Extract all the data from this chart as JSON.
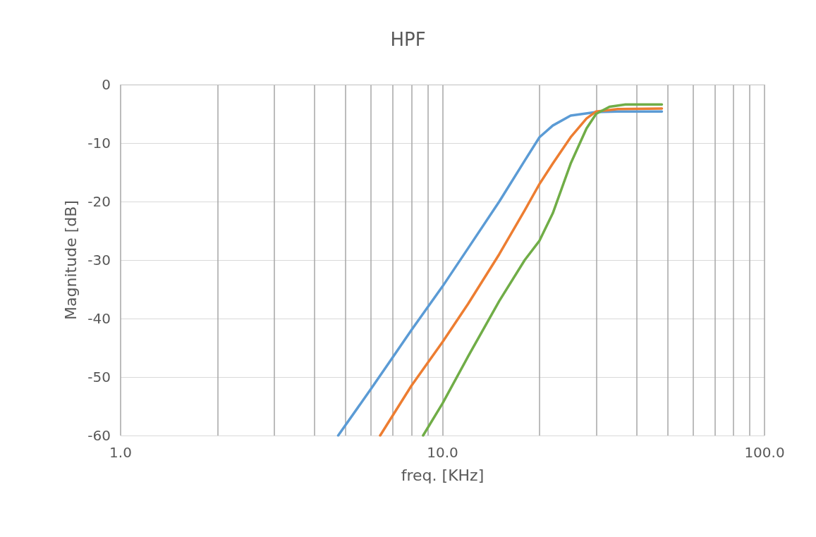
{
  "chart_data": {
    "type": "line",
    "title": "HPF",
    "xlabel": "freq. [KHz]",
    "ylabel": "Magnitude [dB]",
    "log": "x",
    "grid": true,
    "marker": "none",
    "line_style": "solid",
    "xlim": [
      1,
      100
    ],
    "xticks": [
      {
        "value": 1,
        "label": "1.0"
      },
      {
        "value": 2,
        "label": null
      },
      {
        "value": 3,
        "label": null
      },
      {
        "value": 4,
        "label": null
      },
      {
        "value": 5,
        "label": null
      },
      {
        "value": 6,
        "label": null
      },
      {
        "value": 7,
        "label": null
      },
      {
        "value": 8,
        "label": null
      },
      {
        "value": 9,
        "label": null
      },
      {
        "value": 10,
        "label": "10.0"
      },
      {
        "value": 20,
        "label": null
      },
      {
        "value": 30,
        "label": null
      },
      {
        "value": 40,
        "label": null
      },
      {
        "value": 50,
        "label": null
      },
      {
        "value": 60,
        "label": null
      },
      {
        "value": 70,
        "label": null
      },
      {
        "value": 80,
        "label": null
      },
      {
        "value": 90,
        "label": null
      },
      {
        "value": 100,
        "label": "100.0"
      }
    ],
    "ylim": [
      -60,
      0
    ],
    "yticks": [
      -60,
      -50,
      -40,
      -30,
      -20,
      -10,
      0
    ],
    "series": [
      {
        "color": "#5b9bd5",
        "x": [
          4.74,
          6,
          8,
          10,
          12,
          15,
          18,
          20,
          22,
          25,
          30,
          35,
          48
        ],
        "values": [
          -60,
          -52,
          -42,
          -34.5,
          -28,
          -20,
          -13,
          -9,
          -7,
          -5.3,
          -4.7,
          -4.6,
          -4.6
        ]
      },
      {
        "color": "#ed7d31",
        "x": [
          6.4,
          8,
          10,
          12,
          15,
          18,
          20,
          22,
          25,
          28,
          30,
          35,
          48
        ],
        "values": [
          -60,
          -51.5,
          -44,
          -37.5,
          -29,
          -21.5,
          -17,
          -13.5,
          -9,
          -5.8,
          -4.6,
          -4.2,
          -4.1
        ]
      },
      {
        "color": "#70ad47",
        "x": [
          8.7,
          10,
          12,
          15,
          18,
          20,
          22,
          25,
          28,
          30,
          33,
          37,
          48
        ],
        "values": [
          -60,
          -54.5,
          -46.5,
          -37,
          -30,
          -26.7,
          -22,
          -13.5,
          -7.5,
          -5,
          -3.8,
          -3.4,
          -3.4
        ]
      }
    ]
  }
}
